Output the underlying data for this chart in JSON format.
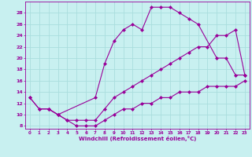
{
  "title": "",
  "xlabel": "Windchill (Refroidissement éolien,°C)",
  "line1_x": [
    0,
    1,
    2,
    3,
    7,
    8,
    9,
    10,
    11,
    12,
    13,
    14,
    15,
    16,
    17,
    18,
    20,
    21,
    22,
    23
  ],
  "line1_y": [
    13,
    11,
    11,
    10,
    13,
    19,
    23,
    25,
    26,
    25,
    29,
    29,
    29,
    28,
    27,
    26,
    20,
    20,
    17,
    17
  ],
  "line2_x": [
    0,
    1,
    2,
    3,
    4,
    5,
    6,
    7,
    8,
    9,
    10,
    11,
    12,
    13,
    14,
    15,
    16,
    17,
    18,
    19,
    20,
    21,
    22,
    23
  ],
  "line2_y": [
    13,
    11,
    11,
    10,
    9,
    9,
    9,
    9,
    11,
    13,
    14,
    15,
    16,
    17,
    18,
    19,
    20,
    21,
    22,
    22,
    24,
    24,
    25,
    17
  ],
  "line3_x": [
    2,
    3,
    4,
    5,
    6,
    7,
    8,
    9,
    10,
    11,
    12,
    13,
    14,
    15,
    16,
    17,
    18,
    19,
    20,
    21,
    22,
    23
  ],
  "line3_y": [
    11,
    10,
    9,
    8,
    8,
    8,
    9,
    10,
    11,
    11,
    12,
    12,
    13,
    13,
    14,
    14,
    14,
    15,
    15,
    15,
    15,
    16
  ],
  "color": "#990099",
  "bg_color": "#c8f0f0",
  "grid_color": "#aadddd",
  "xlim": [
    -0.5,
    23.5
  ],
  "ylim": [
    7.5,
    30
  ],
  "yticks": [
    8,
    10,
    12,
    14,
    16,
    18,
    20,
    22,
    24,
    26,
    28
  ],
  "xticks": [
    0,
    1,
    2,
    3,
    4,
    5,
    6,
    7,
    8,
    9,
    10,
    11,
    12,
    13,
    14,
    15,
    16,
    17,
    18,
    19,
    20,
    21,
    22,
    23
  ],
  "marker": "D",
  "markersize": 2,
  "linewidth": 0.8
}
